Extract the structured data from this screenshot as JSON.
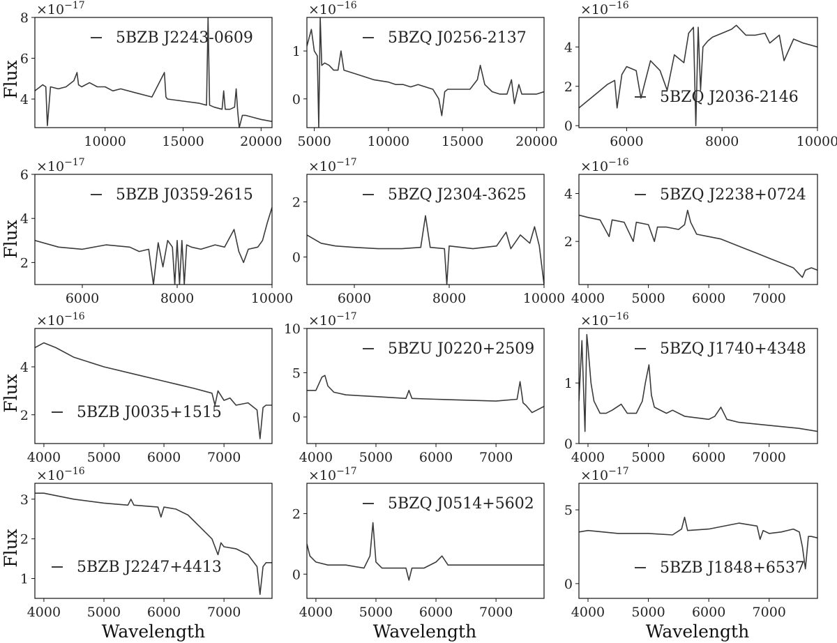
{
  "figure": {
    "y_axis_label": "Flux",
    "x_axis_label": "Wavelength",
    "line_color": "#3a3a3a"
  },
  "chart_data": [
    {
      "type": "line",
      "legend": "5BZB J2243-0609",
      "multiplier": "×10",
      "exponent": "−17",
      "xlim": [
        5500,
        20700
      ],
      "ylim": [
        2.6,
        8
      ],
      "xticks": [
        10000,
        15000,
        20000
      ],
      "yticks": [
        4,
        6,
        8
      ],
      "legend_pos": "top-right",
      "x": [
        5500,
        6000,
        6200,
        6300,
        6500,
        7000,
        7500,
        8000,
        8200,
        8300,
        8500,
        9000,
        9500,
        10000,
        10500,
        11000,
        12000,
        13000,
        13800,
        13900,
        14000,
        15000,
        16000,
        16500,
        16600,
        16700,
        17000,
        17500,
        17600,
        17700,
        18000,
        18300,
        18400,
        18500,
        18600,
        18800,
        19000,
        19500,
        20000,
        20700
      ],
      "y": [
        4.4,
        4.7,
        4.6,
        2.7,
        4.6,
        4.5,
        4.6,
        4.9,
        5.3,
        4.7,
        4.6,
        4.8,
        4.6,
        4.6,
        4.4,
        4.5,
        4.3,
        4.1,
        5.3,
        4.1,
        4.0,
        3.9,
        3.8,
        3.7,
        8.0,
        3.7,
        3.6,
        3.5,
        4.4,
        3.5,
        3.5,
        3.6,
        4.5,
        3.4,
        2.6,
        3.2,
        3.2,
        3.1,
        3.0,
        2.9
      ]
    },
    {
      "type": "line",
      "legend": "5BZQ J0256-2137",
      "multiplier": "×10",
      "exponent": "−16",
      "xlim": [
        4500,
        20500
      ],
      "ylim": [
        -0.6,
        1.7
      ],
      "xticks": [
        5000,
        10000,
        15000,
        20000
      ],
      "yticks": [
        0,
        1
      ],
      "legend_pos": "top-right",
      "x": [
        4500,
        4800,
        5000,
        5200,
        5300,
        5400,
        5500,
        5700,
        6000,
        6300,
        6600,
        6800,
        7000,
        7500,
        8000,
        9000,
        10000,
        10500,
        11000,
        11500,
        12000,
        12500,
        13000,
        13400,
        13600,
        13800,
        14000,
        14500,
        15000,
        15500,
        16000,
        16200,
        16500,
        17000,
        17500,
        18000,
        18300,
        18500,
        18800,
        19000,
        20000,
        20500
      ],
      "y": [
        1.1,
        1.45,
        1.0,
        0.9,
        -0.6,
        1.7,
        0.7,
        0.75,
        0.7,
        0.6,
        0.6,
        1.0,
        0.6,
        0.55,
        0.5,
        0.4,
        0.35,
        0.3,
        0.3,
        0.25,
        0.3,
        0.25,
        0.2,
        0.0,
        -0.35,
        0.15,
        0.2,
        0.2,
        0.2,
        0.2,
        0.4,
        0.7,
        0.3,
        0.15,
        0.1,
        0.1,
        0.4,
        -0.1,
        0.3,
        0.1,
        0.1,
        0.15
      ]
    },
    {
      "type": "line",
      "legend": "5BZQ J2036-2146",
      "multiplier": "×10",
      "exponent": "−16",
      "xlim": [
        5000,
        10000
      ],
      "ylim": [
        -0.1,
        5.5
      ],
      "xticks": [
        6000,
        8000,
        10000
      ],
      "yticks": [
        0,
        2,
        4
      ],
      "legend_pos": "bottom-center",
      "x": [
        5000,
        5200,
        5400,
        5600,
        5750,
        5800,
        5900,
        6000,
        6200,
        6300,
        6500,
        6700,
        6850,
        6900,
        7000,
        7200,
        7300,
        7400,
        7450,
        7500,
        7550,
        7600,
        7700,
        7800,
        8000,
        8200,
        8300,
        8500,
        8700,
        8900,
        9000,
        9200,
        9300,
        9500,
        9700,
        10000
      ],
      "y": [
        0.9,
        1.3,
        1.7,
        2.1,
        2.3,
        0.9,
        2.6,
        3.0,
        2.8,
        1.4,
        3.3,
        2.8,
        1.8,
        2.4,
        3.6,
        3.2,
        4.7,
        5.0,
        0.0,
        5.0,
        1.8,
        4.0,
        4.3,
        4.5,
        4.7,
        4.9,
        5.1,
        4.6,
        4.6,
        4.7,
        4.2,
        4.6,
        3.3,
        4.4,
        4.2,
        4.0
      ]
    },
    {
      "type": "line",
      "legend": "5BZB J0359-2615",
      "multiplier": "×10",
      "exponent": "−17",
      "xlim": [
        5000,
        10000
      ],
      "ylim": [
        1,
        6
      ],
      "xticks": [
        6000,
        8000,
        10000
      ],
      "yticks": [
        2,
        4,
        6
      ],
      "legend_pos": "top-right",
      "x": [
        5000,
        5500,
        6000,
        6500,
        7000,
        7200,
        7400,
        7500,
        7600,
        7700,
        7800,
        7900,
        7950,
        8000,
        8050,
        8100,
        8150,
        8200,
        8300,
        8500,
        8800,
        9000,
        9200,
        9300,
        9400,
        9500,
        9700,
        9800,
        9900,
        10000
      ],
      "y": [
        3.0,
        2.7,
        2.6,
        2.8,
        2.7,
        2.5,
        2.6,
        1.0,
        2.9,
        1.8,
        3.0,
        2.7,
        1.0,
        3.0,
        1.0,
        3.0,
        1.0,
        2.8,
        2.7,
        2.6,
        2.8,
        2.7,
        3.5,
        2.5,
        2.0,
        2.6,
        2.7,
        3.0,
        3.8,
        4.5
      ]
    },
    {
      "type": "line",
      "legend": "5BZQ J2304-3625",
      "multiplier": "×10",
      "exponent": "−17",
      "xlim": [
        5000,
        10000
      ],
      "ylim": [
        -1,
        3
      ],
      "xticks": [
        6000,
        8000,
        10000
      ],
      "yticks": [
        0,
        2
      ],
      "legend_pos": "top-right",
      "x": [
        5000,
        5300,
        5600,
        6000,
        6500,
        7000,
        7400,
        7500,
        7600,
        7900,
        7950,
        8000,
        8500,
        9000,
        9200,
        9300,
        9500,
        9700,
        9800,
        9900,
        10000
      ],
      "y": [
        0.8,
        0.5,
        0.4,
        0.35,
        0.3,
        0.3,
        0.35,
        1.5,
        0.35,
        0.3,
        -1.0,
        0.4,
        0.3,
        0.4,
        0.9,
        0.3,
        0.8,
        0.5,
        1.1,
        0.4,
        -1.0
      ]
    },
    {
      "type": "line",
      "legend": "5BZQ J2238+0724",
      "multiplier": "×10",
      "exponent": "−16",
      "xlim": [
        3850,
        7800
      ],
      "ylim": [
        0.2,
        4.8
      ],
      "xticks": [
        4000,
        5000,
        6000,
        7000
      ],
      "yticks": [
        2,
        4
      ],
      "legend_pos": "top-right",
      "x": [
        3850,
        4000,
        4200,
        4350,
        4400,
        4600,
        4750,
        4800,
        5000,
        5100,
        5150,
        5300,
        5500,
        5600,
        5650,
        5700,
        5800,
        6000,
        6200,
        6400,
        6600,
        6800,
        7000,
        7200,
        7400,
        7550,
        7600,
        7700,
        7800
      ],
      "y": [
        3.1,
        3.0,
        2.9,
        2.2,
        2.9,
        2.8,
        2.0,
        2.8,
        2.7,
        2.0,
        2.6,
        2.6,
        2.5,
        2.7,
        3.3,
        2.8,
        2.3,
        2.2,
        2.1,
        1.9,
        1.7,
        1.5,
        1.3,
        1.1,
        0.9,
        0.5,
        0.8,
        0.9,
        0.8
      ]
    },
    {
      "type": "line",
      "legend": "5BZB J0035+1515",
      "multiplier": "×10",
      "exponent": "−16",
      "xlim": [
        3850,
        7800
      ],
      "ylim": [
        0.8,
        5.6
      ],
      "xticks": [
        4000,
        5000,
        6000,
        7000
      ],
      "yticks": [
        2,
        4
      ],
      "legend_pos": "bottom-left",
      "x": [
        3850,
        4000,
        4200,
        4500,
        5000,
        5500,
        6000,
        6500,
        6800,
        6850,
        6900,
        7000,
        7100,
        7200,
        7400,
        7550,
        7600,
        7650,
        7700,
        7800
      ],
      "y": [
        4.8,
        5.0,
        4.8,
        4.4,
        4.0,
        3.7,
        3.4,
        3.1,
        2.9,
        2.4,
        3.0,
        2.6,
        2.7,
        2.4,
        2.5,
        2.2,
        1.0,
        2.3,
        2.4,
        2.4
      ]
    },
    {
      "type": "line",
      "legend": "5BZU J0220+2509",
      "multiplier": "×10",
      "exponent": "−17",
      "xlim": [
        3850,
        7800
      ],
      "ylim": [
        -3,
        10
      ],
      "xticks": [
        4000,
        5000,
        6000,
        7000
      ],
      "yticks": [
        0,
        5,
        10
      ],
      "legend_pos": "top-right",
      "x": [
        3850,
        4000,
        4100,
        4150,
        4200,
        4300,
        4500,
        5000,
        5500,
        5550,
        5600,
        6000,
        6500,
        7000,
        7350,
        7400,
        7450,
        7500,
        7600,
        7800
      ],
      "y": [
        3.0,
        3.0,
        4.5,
        4.7,
        3.5,
        2.8,
        2.5,
        2.3,
        2.1,
        3.0,
        2.1,
        2.0,
        1.9,
        1.8,
        2.0,
        4.0,
        1.6,
        1.3,
        0.5,
        1.2
      ]
    },
    {
      "type": "line",
      "legend": "5BZQ J1740+4348",
      "multiplier": "×10",
      "exponent": "−16",
      "xlim": [
        3850,
        7800
      ],
      "ylim": [
        0,
        1.9
      ],
      "xticks": [
        4000,
        5000,
        6000,
        7000
      ],
      "yticks": [
        0,
        1
      ],
      "legend_pos": "top-right",
      "x": [
        3850,
        3900,
        3950,
        3980,
        4000,
        4050,
        4100,
        4200,
        4300,
        4400,
        4550,
        4650,
        4800,
        4900,
        4950,
        5010,
        5050,
        5100,
        5300,
        5400,
        5600,
        6000,
        6100,
        6200,
        6300,
        6500,
        7000,
        7500,
        7800
      ],
      "y": [
        0.7,
        1.7,
        0.2,
        1.8,
        1.6,
        1.0,
        0.7,
        0.5,
        0.5,
        0.55,
        0.65,
        0.5,
        0.5,
        0.7,
        1.0,
        1.3,
        0.8,
        0.6,
        0.5,
        0.55,
        0.45,
        0.4,
        0.45,
        0.6,
        0.4,
        0.35,
        0.3,
        0.25,
        0.2
      ]
    },
    {
      "type": "line",
      "legend": "5BZB J2247+4413",
      "multiplier": "×10",
      "exponent": "−16",
      "xlim": [
        3850,
        7800
      ],
      "ylim": [
        0.5,
        3.4
      ],
      "xticks": [
        4000,
        5000,
        6000,
        7000
      ],
      "yticks": [
        1,
        2,
        3
      ],
      "legend_pos": "bottom-left",
      "x": [
        3850,
        4000,
        4500,
        5000,
        5400,
        5450,
        5500,
        5900,
        5950,
        6000,
        6200,
        6400,
        6600,
        6800,
        6900,
        6950,
        7000,
        7200,
        7400,
        7550,
        7600,
        7650,
        7700,
        7800
      ],
      "y": [
        3.15,
        3.15,
        3.0,
        2.9,
        2.85,
        3.0,
        2.85,
        2.8,
        2.55,
        2.8,
        2.75,
        2.6,
        2.3,
        2.0,
        1.6,
        1.9,
        1.8,
        1.75,
        1.6,
        1.3,
        0.6,
        1.3,
        1.4,
        1.4
      ]
    },
    {
      "type": "line",
      "legend": "5BZQ J0514+5602",
      "multiplier": "×10",
      "exponent": "−17",
      "xlim": [
        3850,
        7800
      ],
      "ylim": [
        -0.8,
        3
      ],
      "xticks": [
        4000,
        5000,
        6000,
        7000
      ],
      "yticks": [
        0,
        2
      ],
      "legend_pos": "top-right",
      "x": [
        3850,
        3900,
        4000,
        4200,
        4500,
        4800,
        4900,
        4950,
        5000,
        5100,
        5300,
        5500,
        5550,
        5600,
        5800,
        6000,
        6100,
        6200,
        6500,
        7000,
        7500,
        7800
      ],
      "y": [
        1.0,
        0.6,
        0.4,
        0.3,
        0.3,
        0.2,
        0.6,
        1.7,
        0.4,
        0.2,
        0.2,
        0.2,
        -0.2,
        0.2,
        0.2,
        0.4,
        0.6,
        0.3,
        0.3,
        0.3,
        0.3,
        0.3
      ]
    },
    {
      "type": "line",
      "legend": "5BZB J1848+6537",
      "multiplier": "×10",
      "exponent": "−17",
      "xlim": [
        3850,
        7800
      ],
      "ylim": [
        -1,
        6.8
      ],
      "xticks": [
        4000,
        5000,
        6000,
        7000
      ],
      "yticks": [
        0,
        5
      ],
      "legend_pos": "bottom-center",
      "x": [
        3850,
        4000,
        4500,
        5000,
        5400,
        5550,
        5600,
        5650,
        6000,
        6500,
        6800,
        6850,
        6900,
        7000,
        7200,
        7400,
        7500,
        7550,
        7600,
        7650,
        7700,
        7800
      ],
      "y": [
        3.5,
        3.6,
        3.4,
        3.4,
        3.3,
        3.7,
        4.5,
        3.6,
        3.7,
        4.1,
        3.9,
        3.0,
        3.6,
        3.4,
        3.5,
        3.7,
        3.5,
        2.5,
        1.0,
        3.2,
        3.2,
        3.1
      ]
    }
  ]
}
